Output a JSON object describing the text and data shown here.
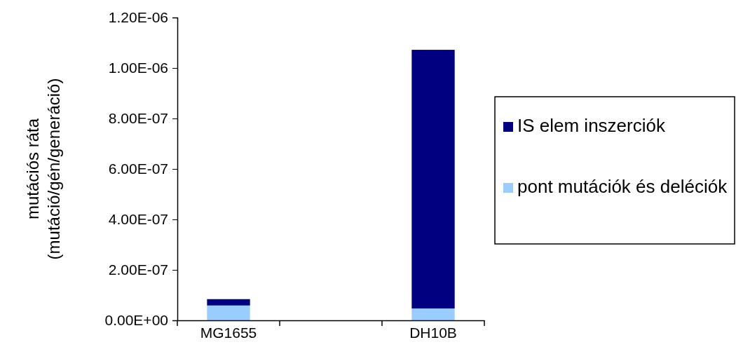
{
  "chart_data": {
    "type": "bar",
    "ylabel": "mutációs ráta\n(mutáció/gén/generáció)",
    "categories": [
      "MG1655",
      null,
      "DH10B"
    ],
    "stacked": true,
    "series": [
      {
        "name": "pont mutációk és deléciók",
        "color": "#99ccff",
        "values": [
          5.9e-08,
          null,
          4.7e-08
        ]
      },
      {
        "name": "IS elem inszerciók",
        "color": "#000080",
        "values": [
          2.5e-08,
          null,
          1.025e-06
        ]
      }
    ],
    "ylim": [
      0,
      1.2e-06
    ],
    "yticks": [
      {
        "value": 0,
        "label": "0.00E+00"
      },
      {
        "value": 2e-07,
        "label": "2.00E-07"
      },
      {
        "value": 4e-07,
        "label": "4.00E-07"
      },
      {
        "value": 6e-07,
        "label": "6.00E-07"
      },
      {
        "value": 8e-07,
        "label": "8.00E-07"
      },
      {
        "value": 1e-06,
        "label": "1.00E-06"
      },
      {
        "value": 1.2e-06,
        "label": "1.20E-06"
      }
    ],
    "legend": "right"
  }
}
